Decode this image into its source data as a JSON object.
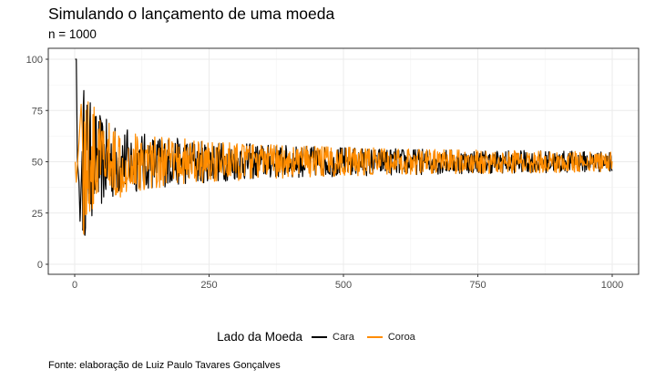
{
  "chart_data": {
    "type": "line",
    "title": "Simulando o lançamento de uma moeda",
    "subtitle": "n = 1000",
    "xlabel": "",
    "ylabel": "",
    "xlim": [
      0,
      1000
    ],
    "ylim": [
      0,
      100
    ],
    "x_ticks": [
      "0",
      "250",
      "500",
      "750",
      "1000"
    ],
    "y_ticks": [
      "0",
      "25",
      "50",
      "75",
      "100"
    ],
    "grid": true,
    "legend_position": "bottom",
    "legend_title": "Lado da Moeda",
    "caption": "Fonte: elaboração de Luiz Paulo Tavares Gonçalves",
    "series": [
      {
        "name": "Cara",
        "color": "#000000",
        "x_range": [
          1,
          1000
        ],
        "values_description_points": [
          [
            1,
            100
          ],
          [
            3,
            100
          ],
          [
            5,
            50
          ],
          [
            8,
            40
          ],
          [
            10,
            21
          ],
          [
            14,
            55
          ],
          [
            20,
            35
          ],
          [
            30,
            60
          ],
          [
            40,
            42
          ],
          [
            60,
            58
          ],
          [
            100,
            45
          ],
          [
            150,
            55
          ],
          [
            200,
            46
          ],
          [
            250,
            53
          ],
          [
            300,
            48
          ],
          [
            400,
            51
          ],
          [
            500,
            49
          ],
          [
            600,
            51
          ],
          [
            700,
            49
          ],
          [
            800,
            50
          ],
          [
            900,
            51
          ],
          [
            1000,
            50
          ]
        ]
      },
      {
        "name": "Coroa",
        "color": "#FF8C00",
        "x_range": [
          1,
          1000
        ],
        "values_description_points": [
          [
            1,
            50
          ],
          [
            3,
            40
          ],
          [
            8,
            60
          ],
          [
            12,
            78
          ],
          [
            20,
            30
          ],
          [
            30,
            64
          ],
          [
            40,
            38
          ],
          [
            60,
            56
          ],
          [
            100,
            47
          ],
          [
            150,
            54
          ],
          [
            200,
            48
          ],
          [
            250,
            52
          ],
          [
            300,
            47
          ],
          [
            400,
            51
          ],
          [
            500,
            50
          ],
          [
            600,
            49
          ],
          [
            700,
            51
          ],
          [
            800,
            50
          ],
          [
            900,
            49
          ],
          [
            1000,
            51
          ]
        ]
      }
    ]
  }
}
